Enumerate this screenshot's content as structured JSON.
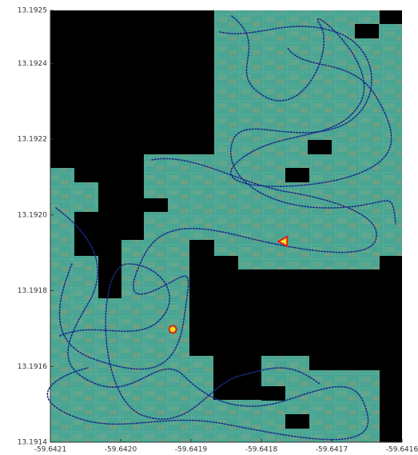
{
  "chart_data": {
    "type": "scatter",
    "xlim": [
      -59.6421,
      -59.6416
    ],
    "xticks": [
      -59.6421,
      {
        "value": -59.642,
        "label": "-59.6420"
      },
      -59.6419,
      -59.6418,
      -59.6417,
      -59.6416
    ],
    "ylim": [
      13.1914,
      13.19254
    ],
    "yticks": [
      13.1914,
      13.1916,
      13.1918,
      {
        "value": 13.192,
        "label": "13.1920"
      },
      13.1922,
      13.1924,
      {
        "value": 13.19254,
        "label": "13.1925"
      }
    ],
    "series": [
      {
        "marker": "circle",
        "color": "#d8231f",
        "face_color": "#f4e21a",
        "x": [
          -59.641926
        ],
        "values": [
          13.191698
        ]
      },
      {
        "marker": "triangle",
        "color": "#d8231f",
        "face_color": "#f4e21a",
        "x": [
          -59.641769
        ],
        "values": [
          13.19193
        ]
      }
    ]
  }
}
